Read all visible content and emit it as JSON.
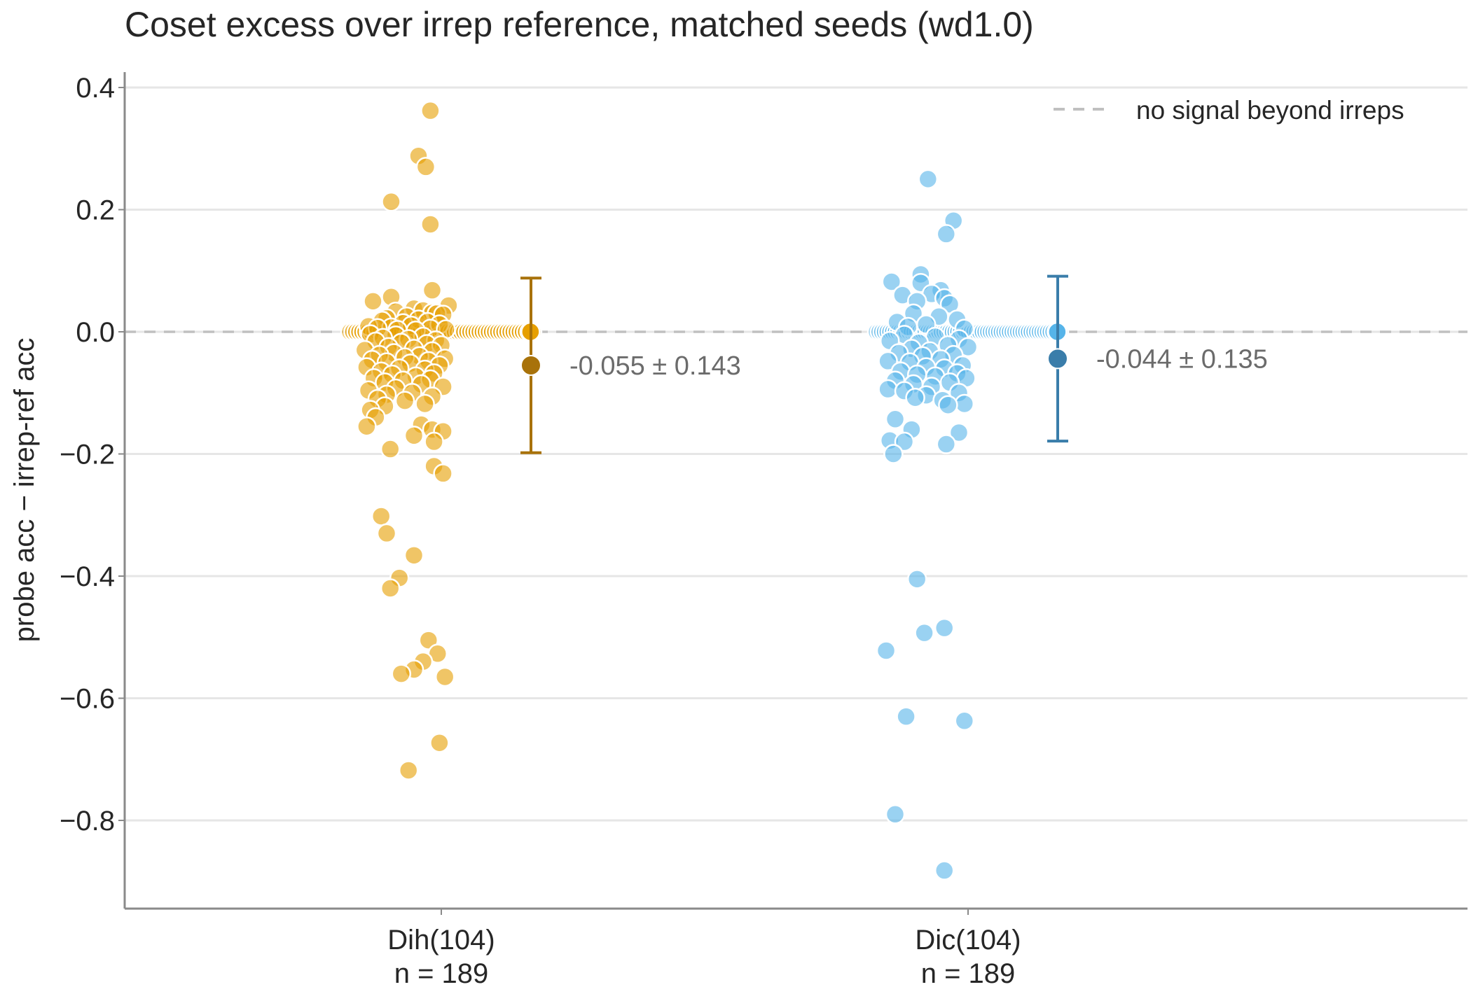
{
  "chart_data": {
    "type": "scatter",
    "title": "Coset excess over irrep reference, matched seeds (wd1.0)",
    "xlabel": "",
    "ylabel": "probe acc − irrep-ref acc",
    "ylim": [
      -0.95,
      0.43
    ],
    "yticks": [
      0.4,
      0.2,
      0.0,
      -0.2,
      -0.4,
      -0.6,
      -0.8
    ],
    "ytick_labels": [
      "0.4",
      "0.2",
      "0.0",
      "−0.2",
      "−0.4",
      "−0.6",
      "−0.8"
    ],
    "grid": "horizontal",
    "reference_line": {
      "y": 0.0,
      "style": "dashed",
      "label": "no signal beyond irreps"
    },
    "legend": {
      "placement": "top-right",
      "entries": [
        "no signal beyond irreps"
      ]
    },
    "categories": [
      {
        "name": "Dih(104)",
        "n_label": "n = 189"
      },
      {
        "name": "Dic(104)",
        "n_label": "n = 189"
      }
    ],
    "series": [
      {
        "category": "Dih(104)",
        "color": "#E69F00",
        "summary_color": "#A8720A",
        "mean": -0.055,
        "std": 0.143,
        "annotation": "-0.055 ± 0.143",
        "n_at_zero": 60,
        "points": [
          {
            "y": 0.362,
            "j": -0.12
          },
          {
            "y": 0.288,
            "j": -0.25
          },
          {
            "y": 0.27,
            "j": -0.17
          },
          {
            "y": 0.213,
            "j": -0.55
          },
          {
            "y": 0.176,
            "j": -0.12
          },
          {
            "y": 0.068,
            "j": -0.1
          },
          {
            "y": 0.057,
            "j": -0.55
          },
          {
            "y": 0.05,
            "j": -0.75
          },
          {
            "y": 0.043,
            "j": 0.08
          },
          {
            "y": 0.038,
            "j": -0.3
          },
          {
            "y": 0.035,
            "j": -0.2
          },
          {
            "y": 0.033,
            "j": -0.5
          },
          {
            "y": 0.031,
            "j": -0.1
          },
          {
            "y": 0.03,
            "j": -0.05
          },
          {
            "y": 0.028,
            "j": 0.02
          },
          {
            "y": 0.025,
            "j": -0.38
          },
          {
            "y": 0.022,
            "j": -0.6
          },
          {
            "y": 0.02,
            "j": -0.25
          },
          {
            "y": 0.018,
            "j": -0.65
          },
          {
            "y": 0.016,
            "j": -0.15
          },
          {
            "y": 0.014,
            "j": -0.42
          },
          {
            "y": 0.012,
            "j": -0.02
          },
          {
            "y": 0.01,
            "j": -0.33
          },
          {
            "y": 0.009,
            "j": -0.8
          },
          {
            "y": 0.007,
            "j": -0.55
          },
          {
            "y": 0.006,
            "j": -0.7
          },
          {
            "y": 0.005,
            "j": -0.12
          },
          {
            "y": 0.004,
            "j": 0.05
          },
          {
            "y": 0.003,
            "j": -0.48
          },
          {
            "y": 0.002,
            "j": -0.28
          },
          {
            "y": -0.004,
            "j": -0.78
          },
          {
            "y": -0.006,
            "j": -0.5
          },
          {
            "y": -0.008,
            "j": -0.2
          },
          {
            "y": -0.01,
            "j": -0.64
          },
          {
            "y": -0.012,
            "j": -0.36
          },
          {
            "y": -0.014,
            "j": -0.06
          },
          {
            "y": -0.016,
            "j": -0.72
          },
          {
            "y": -0.018,
            "j": -0.44
          },
          {
            "y": -0.02,
            "j": -0.16
          },
          {
            "y": -0.022,
            "j": 0.0
          },
          {
            "y": -0.025,
            "j": -0.58
          },
          {
            "y": -0.028,
            "j": -0.3
          },
          {
            "y": -0.03,
            "j": -0.84
          },
          {
            "y": -0.032,
            "j": -0.1
          },
          {
            "y": -0.035,
            "j": -0.52
          },
          {
            "y": -0.038,
            "j": -0.68
          },
          {
            "y": -0.04,
            "j": -0.24
          },
          {
            "y": -0.042,
            "j": -0.4
          },
          {
            "y": -0.044,
            "j": 0.04
          },
          {
            "y": -0.046,
            "j": -0.76
          },
          {
            "y": -0.048,
            "j": -0.14
          },
          {
            "y": -0.05,
            "j": -0.6
          },
          {
            "y": -0.052,
            "j": -0.34
          },
          {
            "y": -0.055,
            "j": -0.02
          },
          {
            "y": -0.058,
            "j": -0.82
          },
          {
            "y": -0.06,
            "j": -0.46
          },
          {
            "y": -0.062,
            "j": -0.18
          },
          {
            "y": -0.065,
            "j": -0.66
          },
          {
            "y": -0.068,
            "j": -0.08
          },
          {
            "y": -0.07,
            "j": -0.54
          },
          {
            "y": -0.073,
            "j": -0.28
          },
          {
            "y": -0.076,
            "j": -0.74
          },
          {
            "y": -0.078,
            "j": -0.12
          },
          {
            "y": -0.08,
            "j": -0.42
          },
          {
            "y": -0.083,
            "j": -0.62
          },
          {
            "y": -0.086,
            "j": -0.22
          },
          {
            "y": -0.09,
            "j": 0.02
          },
          {
            "y": -0.093,
            "j": -0.5
          },
          {
            "y": -0.096,
            "j": -0.8
          },
          {
            "y": -0.1,
            "j": -0.32
          },
          {
            "y": -0.103,
            "j": -0.6
          },
          {
            "y": -0.106,
            "j": -0.1
          },
          {
            "y": -0.11,
            "j": -0.7
          },
          {
            "y": -0.113,
            "j": -0.4
          },
          {
            "y": -0.118,
            "j": -0.18
          },
          {
            "y": -0.122,
            "j": -0.62
          },
          {
            "y": -0.128,
            "j": -0.78
          },
          {
            "y": -0.14,
            "j": -0.72
          },
          {
            "y": -0.152,
            "j": -0.22
          },
          {
            "y": -0.155,
            "j": -0.82
          },
          {
            "y": -0.16,
            "j": -0.1
          },
          {
            "y": -0.163,
            "j": 0.02
          },
          {
            "y": -0.17,
            "j": -0.3
          },
          {
            "y": -0.18,
            "j": -0.08
          },
          {
            "y": -0.192,
            "j": -0.56
          },
          {
            "y": -0.22,
            "j": -0.08
          },
          {
            "y": -0.232,
            "j": 0.02
          },
          {
            "y": -0.302,
            "j": -0.66
          },
          {
            "y": -0.33,
            "j": -0.6
          },
          {
            "y": -0.366,
            "j": -0.3
          },
          {
            "y": -0.403,
            "j": -0.46
          },
          {
            "y": -0.42,
            "j": -0.56
          },
          {
            "y": -0.505,
            "j": -0.14
          },
          {
            "y": -0.527,
            "j": -0.04
          },
          {
            "y": -0.54,
            "j": -0.2
          },
          {
            "y": -0.553,
            "j": -0.3
          },
          {
            "y": -0.56,
            "j": -0.44
          },
          {
            "y": -0.565,
            "j": 0.04
          },
          {
            "y": -0.673,
            "j": -0.02
          },
          {
            "y": -0.718,
            "j": -0.36
          }
        ]
      },
      {
        "category": "Dic(104)",
        "color": "#56B4E9",
        "summary_color": "#3A7DAA",
        "mean": -0.044,
        "std": 0.135,
        "annotation": "-0.044 ± 0.135",
        "n_at_zero": 68,
        "points": [
          {
            "y": 0.25,
            "j": -0.44
          },
          {
            "y": 0.182,
            "j": -0.16
          },
          {
            "y": 0.16,
            "j": -0.24
          },
          {
            "y": 0.094,
            "j": -0.52
          },
          {
            "y": 0.082,
            "j": -0.84
          },
          {
            "y": 0.08,
            "j": -0.52
          },
          {
            "y": 0.068,
            "j": -0.3
          },
          {
            "y": 0.062,
            "j": -0.4
          },
          {
            "y": 0.06,
            "j": -0.72
          },
          {
            "y": 0.055,
            "j": -0.26
          },
          {
            "y": 0.05,
            "j": -0.56
          },
          {
            "y": 0.045,
            "j": -0.2
          },
          {
            "y": 0.03,
            "j": -0.6
          },
          {
            "y": 0.025,
            "j": -0.32
          },
          {
            "y": 0.02,
            "j": -0.12
          },
          {
            "y": 0.016,
            "j": -0.78
          },
          {
            "y": 0.012,
            "j": -0.46
          },
          {
            "y": 0.008,
            "j": -0.66
          },
          {
            "y": 0.005,
            "j": -0.04
          },
          {
            "y": -0.005,
            "j": -0.7
          },
          {
            "y": -0.008,
            "j": -0.36
          },
          {
            "y": -0.012,
            "j": -0.1
          },
          {
            "y": -0.015,
            "j": -0.86
          },
          {
            "y": -0.018,
            "j": -0.54
          },
          {
            "y": -0.022,
            "j": -0.22
          },
          {
            "y": -0.025,
            "j": 0.0
          },
          {
            "y": -0.028,
            "j": -0.62
          },
          {
            "y": -0.032,
            "j": -0.42
          },
          {
            "y": -0.035,
            "j": -0.76
          },
          {
            "y": -0.038,
            "j": -0.16
          },
          {
            "y": -0.04,
            "j": -0.5
          },
          {
            "y": -0.045,
            "j": -0.3
          },
          {
            "y": -0.048,
            "j": -0.88
          },
          {
            "y": -0.05,
            "j": -0.64
          },
          {
            "y": -0.055,
            "j": -0.06
          },
          {
            "y": -0.058,
            "j": -0.46
          },
          {
            "y": -0.06,
            "j": -0.26
          },
          {
            "y": -0.065,
            "j": -0.74
          },
          {
            "y": -0.068,
            "j": -0.12
          },
          {
            "y": -0.07,
            "j": -0.56
          },
          {
            "y": -0.073,
            "j": -0.36
          },
          {
            "y": -0.076,
            "j": -0.02
          },
          {
            "y": -0.08,
            "j": -0.8
          },
          {
            "y": -0.083,
            "j": -0.2
          },
          {
            "y": -0.086,
            "j": -0.6
          },
          {
            "y": -0.09,
            "j": -0.4
          },
          {
            "y": -0.094,
            "j": -0.88
          },
          {
            "y": -0.097,
            "j": -0.7
          },
          {
            "y": -0.1,
            "j": -0.1
          },
          {
            "y": -0.104,
            "j": -0.46
          },
          {
            "y": -0.108,
            "j": -0.58
          },
          {
            "y": -0.112,
            "j": -0.28
          },
          {
            "y": -0.118,
            "j": -0.04
          },
          {
            "y": -0.12,
            "j": -0.22
          },
          {
            "y": -0.143,
            "j": -0.8
          },
          {
            "y": -0.16,
            "j": -0.62
          },
          {
            "y": -0.165,
            "j": -0.1
          },
          {
            "y": -0.178,
            "j": -0.86
          },
          {
            "y": -0.18,
            "j": -0.7
          },
          {
            "y": -0.184,
            "j": -0.24
          },
          {
            "y": -0.2,
            "j": -0.82
          },
          {
            "y": -0.405,
            "j": -0.56
          },
          {
            "y": -0.485,
            "j": -0.26
          },
          {
            "y": -0.493,
            "j": -0.48
          },
          {
            "y": -0.522,
            "j": -0.9
          },
          {
            "y": -0.63,
            "j": -0.68
          },
          {
            "y": -0.637,
            "j": -0.04
          },
          {
            "y": -0.79,
            "j": -0.8
          },
          {
            "y": -0.882,
            "j": -0.26
          }
        ]
      }
    ]
  }
}
